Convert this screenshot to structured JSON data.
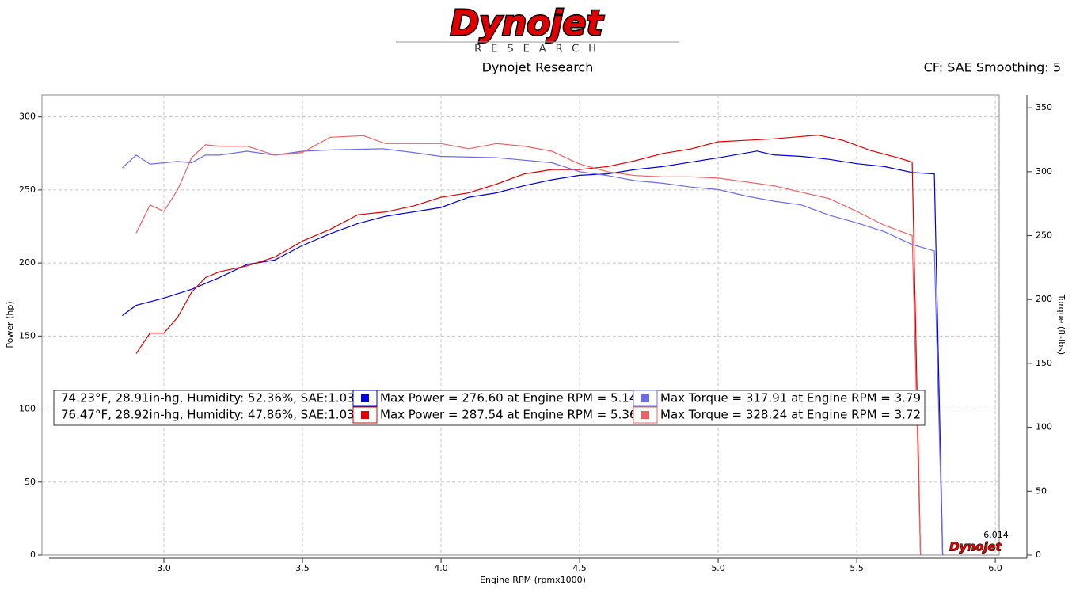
{
  "chart_data": {
    "type": "line",
    "logo": "Dynojet",
    "logo_sub": "RESEARCH",
    "title": "Dynojet Research",
    "subtitle": "CF: SAE Smoothing: 5",
    "xlabel": "Engine RPM (rpmx1000)",
    "ylabel": "Power (hp)",
    "y2label": "Torque (ft-lbs)",
    "annotation": "6.014",
    "xlim": [
      2.56,
      6.014
    ],
    "ylim": [
      0,
      315
    ],
    "y2lim": [
      0,
      360
    ],
    "xticks": [
      {
        "value": 3,
        "label": "3.0"
      },
      {
        "value": 3.5,
        "label": "3.5"
      },
      {
        "value": 4,
        "label": "4.0"
      },
      {
        "value": 4.5,
        "label": "4.5"
      },
      {
        "value": 5,
        "label": "5.0"
      },
      {
        "value": 5.5,
        "label": "5.5"
      },
      {
        "value": 6,
        "label": "6.0"
      }
    ],
    "yticks": [
      0,
      50,
      100,
      150,
      200,
      250,
      300
    ],
    "y2ticks": [
      0,
      50,
      100,
      150,
      200,
      250,
      300,
      350
    ],
    "grid": true,
    "runs": [
      "74.23°F, 28.91in-hg, Humidity: 52.36%, SAE:1.03",
      "76.47°F, 28.92in-hg, Humidity: 47.86%, SAE:1.03"
    ],
    "series": [
      {
        "name": "Max Power = 276.60 at Engine RPM = 5.14",
        "color": "#0000d8",
        "axis": "y",
        "x": [
          2.85,
          2.9,
          3.0,
          3.1,
          3.2,
          3.3,
          3.4,
          3.5,
          3.6,
          3.7,
          3.8,
          3.9,
          4.0,
          4.1,
          4.2,
          4.3,
          4.4,
          4.5,
          4.6,
          4.7,
          4.8,
          4.9,
          5.0,
          5.14,
          5.2,
          5.3,
          5.4,
          5.5,
          5.6,
          5.7,
          5.78,
          5.81
        ],
        "values": [
          164,
          171,
          176,
          182,
          190,
          199,
          202,
          212,
          220,
          227,
          232,
          235,
          238,
          245,
          248,
          253,
          257,
          260,
          261,
          264,
          266,
          269,
          272,
          276.6,
          274,
          273,
          271,
          268,
          266,
          262,
          261,
          0
        ]
      },
      {
        "name": "Max Power = 287.54 at Engine RPM = 5.36",
        "color": "#e00000",
        "axis": "y",
        "x": [
          2.9,
          2.95,
          3.0,
          3.05,
          3.1,
          3.15,
          3.2,
          3.3,
          3.4,
          3.5,
          3.6,
          3.7,
          3.8,
          3.9,
          4.0,
          4.1,
          4.2,
          4.3,
          4.4,
          4.5,
          4.6,
          4.7,
          4.8,
          4.9,
          5.0,
          5.1,
          5.2,
          5.36,
          5.45,
          5.55,
          5.65,
          5.7,
          5.73
        ],
        "values": [
          138,
          152,
          152,
          163,
          180,
          190,
          194,
          198,
          204,
          215,
          223,
          233,
          235,
          239,
          245,
          248,
          254,
          261,
          264,
          264,
          266,
          270,
          275,
          278,
          283,
          284,
          285,
          287.54,
          284,
          277,
          272,
          269,
          0
        ]
      },
      {
        "name": "Max Torque = 317.91 at Engine RPM = 3.79",
        "color": "#6c6cf0",
        "axis": "y2",
        "x": [
          2.85,
          2.9,
          2.95,
          3.05,
          3.1,
          3.15,
          3.2,
          3.3,
          3.4,
          3.5,
          3.6,
          3.79,
          3.9,
          4.0,
          4.2,
          4.4,
          4.5,
          4.6,
          4.7,
          4.8,
          4.9,
          5.0,
          5.1,
          5.2,
          5.3,
          5.4,
          5.5,
          5.6,
          5.7,
          5.78,
          5.81
        ],
        "values": [
          303,
          313,
          306,
          308,
          307,
          313,
          313,
          316,
          313,
          316,
          317,
          317.91,
          315,
          312,
          311,
          307,
          300,
          297,
          293,
          291,
          288,
          286,
          281,
          277,
          274,
          266,
          260,
          253,
          243,
          238,
          0
        ]
      },
      {
        "name": "Max Torque = 328.24 at Engine RPM = 3.72",
        "color": "#f06060",
        "axis": "y2",
        "x": [
          2.9,
          2.95,
          3.0,
          3.05,
          3.1,
          3.15,
          3.2,
          3.3,
          3.4,
          3.5,
          3.6,
          3.72,
          3.8,
          3.9,
          4.0,
          4.1,
          4.2,
          4.3,
          4.4,
          4.5,
          4.6,
          4.7,
          4.8,
          4.9,
          5.0,
          5.1,
          5.2,
          5.3,
          5.4,
          5.5,
          5.6,
          5.7,
          5.73
        ],
        "values": [
          252,
          274,
          269,
          286,
          311,
          321,
          320,
          320,
          313,
          315,
          327,
          328.24,
          322,
          322,
          322,
          318,
          322,
          320,
          316,
          306,
          300,
          297,
          296,
          296,
          295,
          292,
          289,
          284,
          279,
          269,
          258,
          250,
          0
        ]
      }
    ]
  }
}
